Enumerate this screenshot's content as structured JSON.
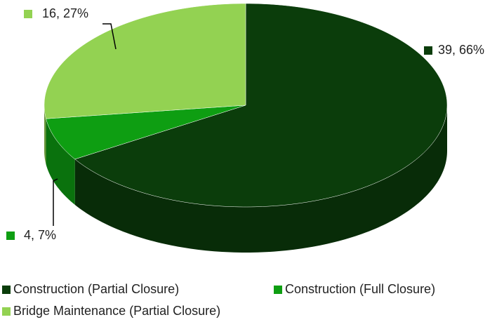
{
  "chart_data": {
    "type": "pie",
    "categories": [
      "Construction (Partial Closure)",
      "Construction (Full Closure)",
      "Bridge Maintenance (Partial Closure)"
    ],
    "values": [
      39,
      4,
      16
    ],
    "value_labels": [
      "39, 66%",
      "4, 7%",
      "16, 27%"
    ],
    "colors": [
      "#0b3d0b",
      "#0e9e12",
      "#93d252"
    ],
    "legend": "bottom"
  }
}
